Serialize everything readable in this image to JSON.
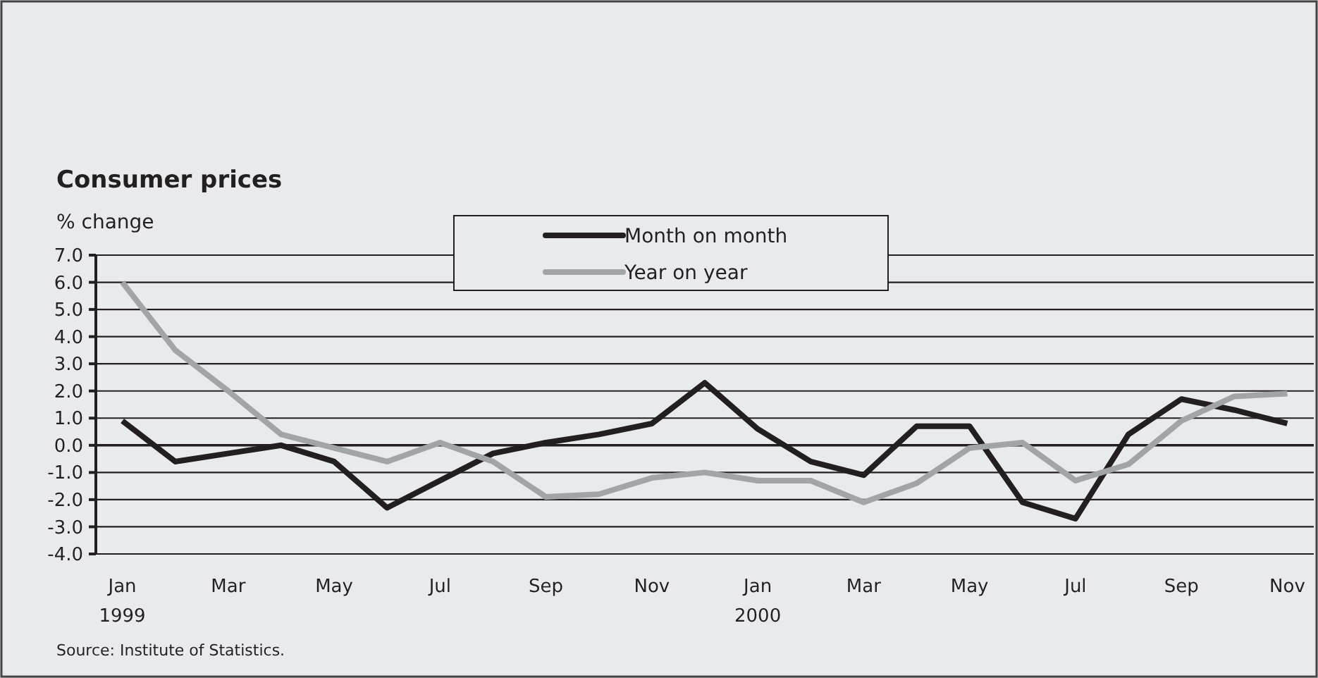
{
  "chart_data": {
    "type": "line",
    "title": "Consumer prices",
    "subtitle": "% change",
    "categories": [
      "Jan\n1999",
      null,
      "Mar",
      null,
      "May",
      null,
      "Jul",
      null,
      "Sep",
      null,
      "Nov",
      null,
      "Jan\n2000",
      null,
      "Mar",
      null,
      "May",
      null,
      "Jul",
      null,
      "Sep",
      null,
      "Nov"
    ],
    "series": [
      {
        "name": "Month on month",
        "color": "#231f20",
        "values": [
          0.9,
          -0.6,
          -0.3,
          0.0,
          -0.6,
          -2.3,
          -1.3,
          -0.3,
          0.1,
          0.4,
          0.8,
          2.3,
          0.6,
          -0.6,
          -1.1,
          0.7,
          0.7,
          -2.1,
          -2.7,
          0.4,
          1.7,
          1.3,
          0.8
        ]
      },
      {
        "name": "Year on year",
        "color": "#a2a5a8",
        "values": [
          6.0,
          3.5,
          2.0,
          0.4,
          -0.1,
          -0.6,
          0.1,
          -0.6,
          -1.9,
          -1.8,
          -1.2,
          -1.0,
          -1.3,
          -1.3,
          -2.1,
          -1.4,
          -0.1,
          0.1,
          -1.3,
          -0.7,
          0.9,
          1.8,
          1.9
        ]
      }
    ],
    "ylim": [
      -4,
      7
    ],
    "yticks": [
      {
        "value": 7,
        "label": "7.0"
      },
      {
        "value": 6,
        "label": "6.0"
      },
      {
        "value": 5,
        "label": "5.0"
      },
      {
        "value": 4,
        "label": "4.0"
      },
      {
        "value": 3,
        "label": "3.0"
      },
      {
        "value": 2,
        "label": "2.0"
      },
      {
        "value": 1,
        "label": "1.0"
      },
      {
        "value": 0,
        "label": "0.0"
      },
      {
        "value": -1,
        "label": "-1.0"
      },
      {
        "value": -2,
        "label": "-2.0"
      },
      {
        "value": -3,
        "label": "-3.0"
      },
      {
        "value": -4,
        "label": "-4.0"
      }
    ],
    "grid": "y",
    "legend": "top",
    "marker": "none",
    "line_style": "solid",
    "annotations": [
      "Source: Institute of Statistics."
    ]
  }
}
